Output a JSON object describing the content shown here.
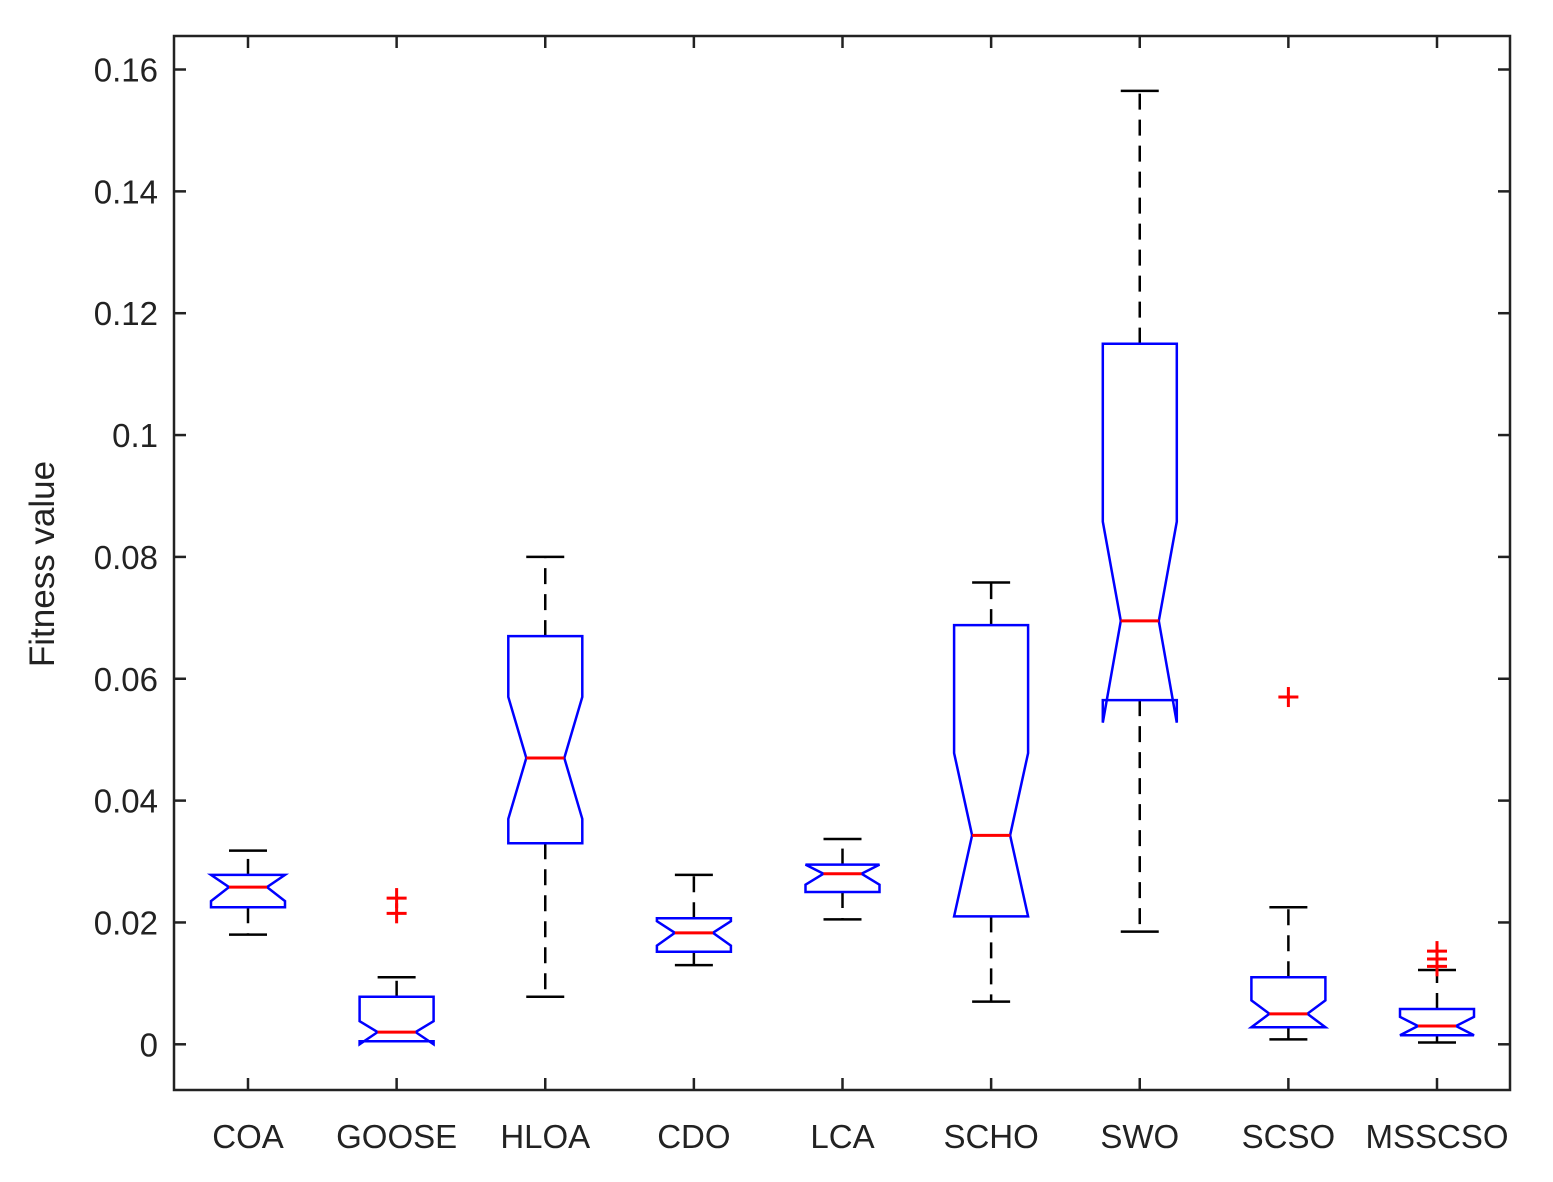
{
  "chart_data": {
    "type": "box",
    "title": "",
    "xlabel": "",
    "ylabel": "Fitness value",
    "ylim": [
      -0.0075,
      0.1655
    ],
    "yticks": [
      0,
      0.02,
      0.04,
      0.06,
      0.08,
      0.1,
      0.12,
      0.14,
      0.16
    ],
    "ytick_labels": [
      "0",
      "0.02",
      "0.04",
      "0.06",
      "0.08",
      "0.1",
      "0.12",
      "0.14",
      "0.16"
    ],
    "notched": true,
    "colors": {
      "box": "#0000ff",
      "median": "#ff0000",
      "whisker": "#000000",
      "outlier": "#ff0000",
      "axis": "#222222"
    },
    "categories": [
      "COA",
      "GOOSE",
      "HLOA",
      "CDO",
      "LCA",
      "SCHO",
      "SWO",
      "SCSO",
      "MSSCSO"
    ],
    "boxes": [
      {
        "name": "COA",
        "whisker_low": 0.018,
        "q1": 0.0225,
        "median": 0.0258,
        "q3": 0.0278,
        "whisker_high": 0.0318,
        "notch_low": 0.0235,
        "notch_high": 0.0278,
        "outliers": []
      },
      {
        "name": "GOOSE",
        "whisker_low": 0.0005,
        "q1": 0.0005,
        "median": 0.002,
        "q3": 0.0078,
        "whisker_high": 0.011,
        "notch_low": 0.0,
        "notch_high": 0.0038,
        "outliers": [
          0.0215,
          0.024
        ]
      },
      {
        "name": "HLOA",
        "whisker_low": 0.0078,
        "q1": 0.033,
        "median": 0.047,
        "q3": 0.067,
        "whisker_high": 0.08,
        "notch_low": 0.037,
        "notch_high": 0.057,
        "outliers": []
      },
      {
        "name": "CDO",
        "whisker_low": 0.013,
        "q1": 0.0152,
        "median": 0.0183,
        "q3": 0.0207,
        "whisker_high": 0.0278,
        "notch_low": 0.0162,
        "notch_high": 0.0202,
        "outliers": []
      },
      {
        "name": "LCA",
        "whisker_low": 0.0205,
        "q1": 0.025,
        "median": 0.028,
        "q3": 0.0295,
        "whisker_high": 0.0337,
        "notch_low": 0.0262,
        "notch_high": 0.0295,
        "outliers": []
      },
      {
        "name": "SCHO",
        "whisker_low": 0.007,
        "q1": 0.021,
        "median": 0.0343,
        "q3": 0.0688,
        "whisker_high": 0.0758,
        "notch_low": 0.021,
        "notch_high": 0.0478,
        "outliers": []
      },
      {
        "name": "SWO",
        "whisker_low": 0.0185,
        "q1": 0.0565,
        "median": 0.0695,
        "q3": 0.115,
        "whisker_high": 0.1565,
        "notch_low": 0.0528,
        "notch_high": 0.0858,
        "outliers": []
      },
      {
        "name": "SCSO",
        "whisker_low": 0.0008,
        "q1": 0.0028,
        "median": 0.005,
        "q3": 0.011,
        "whisker_high": 0.0225,
        "notch_low": 0.0028,
        "notch_high": 0.0072,
        "outliers": [
          0.057
        ]
      },
      {
        "name": "MSSCSO",
        "whisker_low": 0.0003,
        "q1": 0.0015,
        "median": 0.003,
        "q3": 0.0058,
        "whisker_high": 0.0122,
        "notch_low": 0.0015,
        "notch_high": 0.0045,
        "outliers": [
          0.0128,
          0.014,
          0.0153
        ]
      }
    ]
  }
}
